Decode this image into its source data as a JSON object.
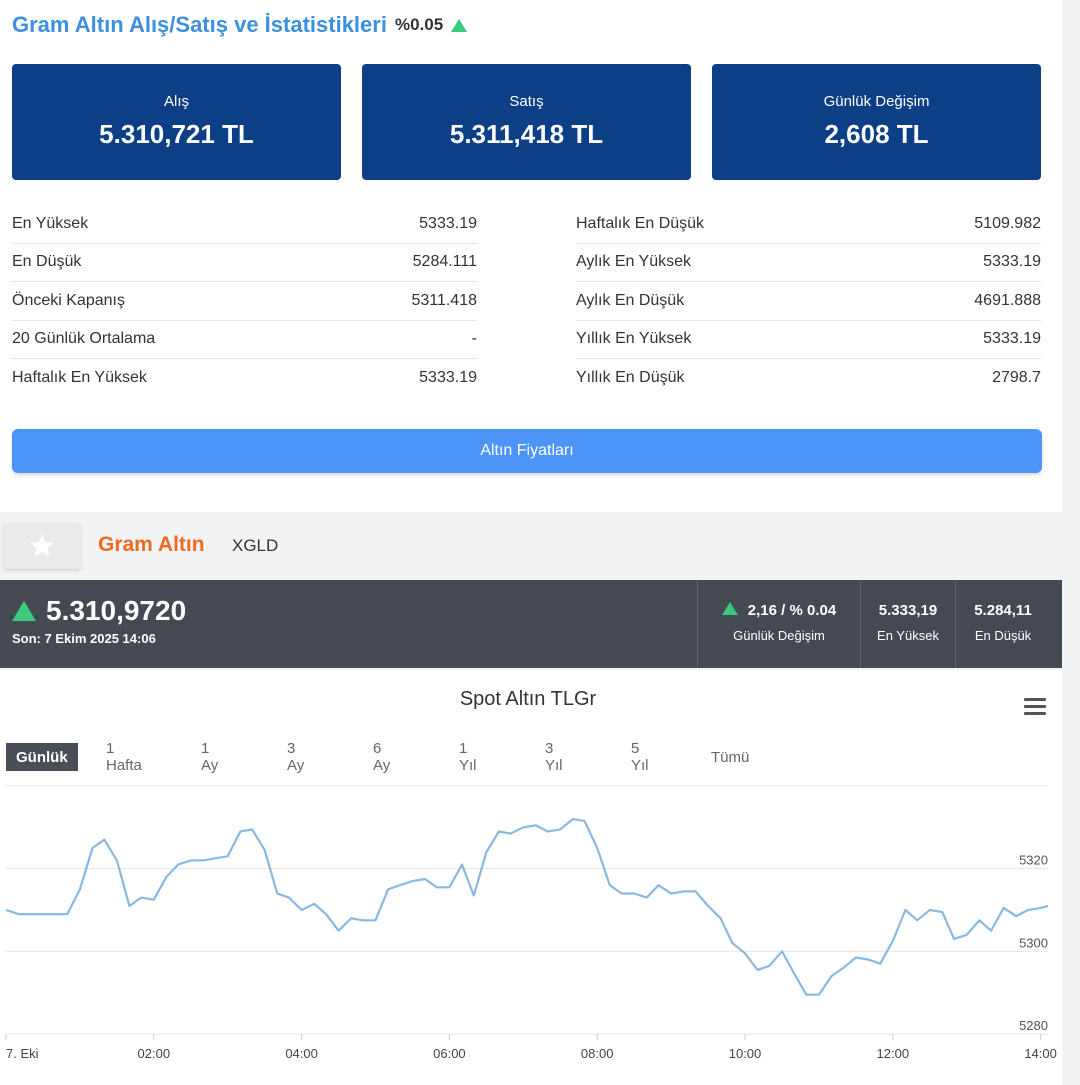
{
  "stats_card": {
    "title": "Gram Altın Alış/Satış ve İstatistikleri",
    "change_pct": "%0.05",
    "boxes": [
      {
        "label": "Alış",
        "value": "5.310,721 TL"
      },
      {
        "label": "Satış",
        "value": "5.311,418 TL"
      },
      {
        "label": "Günlük Değişim",
        "value": "2,608 TL"
      }
    ],
    "left_stats": [
      {
        "label": "En Yüksek",
        "value": "5333.19"
      },
      {
        "label": "En Düşük",
        "value": "5284.111"
      },
      {
        "label": "Önceki Kapanış",
        "value": "5311.418"
      },
      {
        "label": "20 Günlük Ortalama",
        "value": "-"
      },
      {
        "label": "Haftalık En Yüksek",
        "value": "5333.19"
      }
    ],
    "right_stats": [
      {
        "label": "Haftalık En Düşük",
        "value": "5109.982"
      },
      {
        "label": "Aylık En Yüksek",
        "value": "5333.19"
      },
      {
        "label": "Aylık En Düşük",
        "value": "4691.888"
      },
      {
        "label": "Yıllık En Yüksek",
        "value": "5333.19"
      },
      {
        "label": "Yıllık En Düşük",
        "value": "2798.7"
      }
    ],
    "button_label": "Altın Fiyatları"
  },
  "instrument": {
    "name": "Gram Altın",
    "code": "XGLD",
    "price": "5.310,9720",
    "last_update": "Son: 7 Ekim 2025 14:06",
    "daily_change": "2,16 / % 0.04",
    "daily_change_label": "Günlük Değişim",
    "high": "5.333,19",
    "high_label": "En Yüksek",
    "low": "5.284,11",
    "low_label": "En Düşük"
  },
  "colors": {
    "title_blue": "#3d8fe0",
    "box_navy": "#0d3f86",
    "button_blue": "#4d94f8",
    "orange": "#ee6a23",
    "dark_bar": "#454a52",
    "up_green": "#3cc97c",
    "line": "#8ab8e0"
  },
  "icons": {
    "star": "star-icon",
    "menu": "menu-icon",
    "up": "triangle-up-icon"
  },
  "chart": {
    "range_buttons": [
      "Günlük",
      "1 Hafta",
      "1 Ay",
      "3 Ay",
      "6 Ay",
      "1 Yıl",
      "3 Yıl",
      "5 Yıl",
      "Tümü"
    ],
    "active_range": "Günlük"
  },
  "chart_data": {
    "type": "line",
    "title": "Spot Altın TLGr",
    "x_tick_labels": [
      "7. Eki",
      "02:00",
      "04:00",
      "06:00",
      "08:00",
      "10:00",
      "12:00",
      "14:00"
    ],
    "y_tick_labels": [
      "5280",
      "5300",
      "5320"
    ],
    "ylim": [
      5280,
      5340
    ],
    "xlim": [
      0,
      14.1
    ],
    "grid": true,
    "series": [
      {
        "x": [
          0,
          0.17,
          0.33,
          0.5,
          0.67,
          0.83,
          1.0,
          1.17,
          1.33,
          1.5,
          1.67,
          1.83,
          2.0,
          2.17,
          2.33,
          2.5,
          2.67,
          2.83,
          3.0,
          3.17,
          3.33,
          3.5,
          3.67,
          3.83,
          4.0,
          4.17,
          4.33,
          4.5,
          4.67,
          4.83,
          5.0,
          5.17,
          5.33,
          5.5,
          5.67,
          5.83,
          6.0,
          6.17,
          6.33,
          6.5,
          6.67,
          6.83,
          7.0,
          7.17,
          7.33,
          7.5,
          7.67,
          7.83,
          8.0,
          8.17,
          8.33,
          8.5,
          8.67,
          8.83,
          9.0,
          9.17,
          9.33,
          9.5,
          9.67,
          9.83,
          10.0,
          10.17,
          10.33,
          10.5,
          10.67,
          10.83,
          11.0,
          11.17,
          11.33,
          11.5,
          11.67,
          11.83,
          12.0,
          12.17,
          12.33,
          12.5,
          12.67,
          12.83,
          13.0,
          13.17,
          13.33,
          13.5,
          13.67,
          13.83,
          14.0,
          14.1
        ],
        "y": [
          5310,
          5309,
          5309,
          5309,
          5309,
          5309,
          5315,
          5325,
          5327,
          5322,
          5311,
          5313,
          5312.5,
          5318,
          5321,
          5322,
          5322,
          5322.5,
          5323,
          5329,
          5329.5,
          5324.5,
          5314,
          5313,
          5310,
          5311.5,
          5309,
          5305,
          5308,
          5307.5,
          5307.5,
          5315,
          5316,
          5317,
          5317.5,
          5315.5,
          5315.5,
          5321,
          5313.5,
          5324,
          5329,
          5328.5,
          5330,
          5330.5,
          5329,
          5329.5,
          5332,
          5331.5,
          5325,
          5316,
          5314,
          5314,
          5313,
          5316,
          5314,
          5314.5,
          5314.5,
          5311,
          5308,
          5302,
          5299.5,
          5295.5,
          5296.5,
          5300,
          5294.5,
          5289.5,
          5289.5,
          5294,
          5296,
          5298.5,
          5298,
          5297,
          5302.5,
          5310,
          5307.5,
          5310,
          5309.5,
          5303,
          5304,
          5307.5,
          5305,
          5310.5,
          5308.5,
          5310,
          5310.5,
          5311
        ]
      }
    ]
  }
}
